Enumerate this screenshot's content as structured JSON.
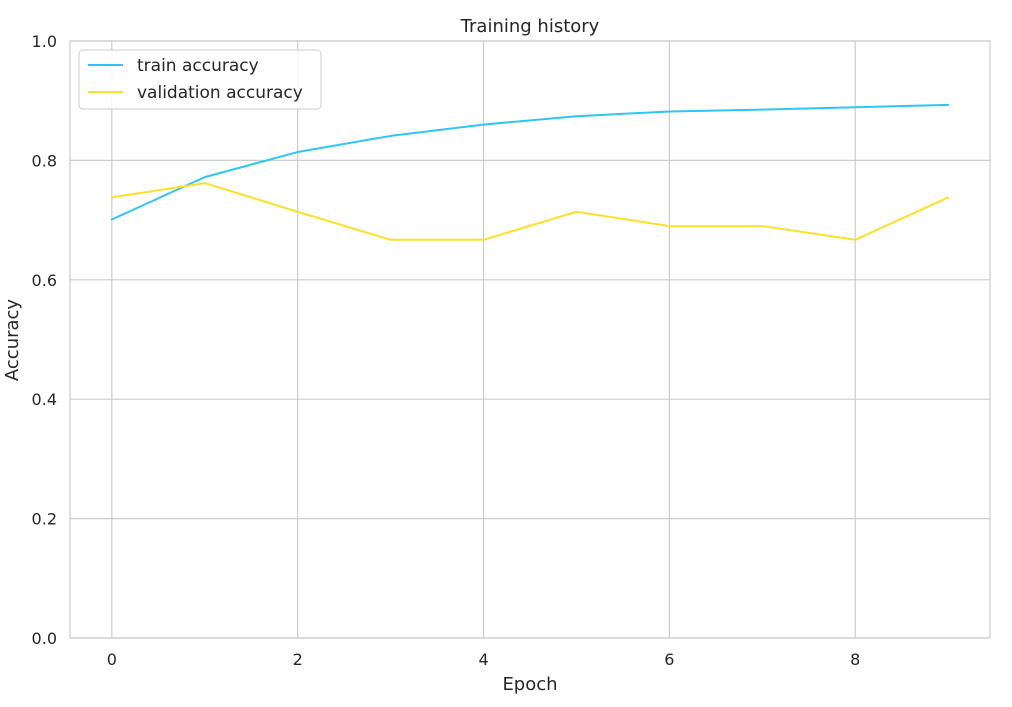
{
  "chart_data": {
    "type": "line",
    "title": "Training history",
    "xlabel": "Epoch",
    "ylabel": "Accuracy",
    "xlim": [
      -0.45,
      9.45
    ],
    "ylim": [
      0.0,
      1.0
    ],
    "x": [
      0,
      1,
      2,
      3,
      4,
      5,
      6,
      7,
      8,
      9
    ],
    "x_ticks": [
      0,
      2,
      4,
      6,
      8
    ],
    "y_ticks": [
      0.0,
      0.2,
      0.4,
      0.6,
      0.8,
      1.0
    ],
    "x_tick_labels": [
      "0",
      "2",
      "4",
      "6",
      "8"
    ],
    "y_tick_labels": [
      "0.0",
      "0.2",
      "0.4",
      "0.6",
      "0.8",
      "1.0"
    ],
    "grid": true,
    "legend_position": "top-left",
    "series": [
      {
        "name": "train accuracy",
        "color": "#2ec5f5",
        "values": [
          0.701,
          0.772,
          0.814,
          0.841,
          0.86,
          0.874,
          0.882,
          0.885,
          0.889,
          0.893
        ]
      },
      {
        "name": "validation accuracy",
        "color": "#fde02a",
        "values": [
          0.738,
          0.762,
          0.714,
          0.667,
          0.667,
          0.714,
          0.69,
          0.69,
          0.667,
          0.738
        ]
      }
    ]
  }
}
